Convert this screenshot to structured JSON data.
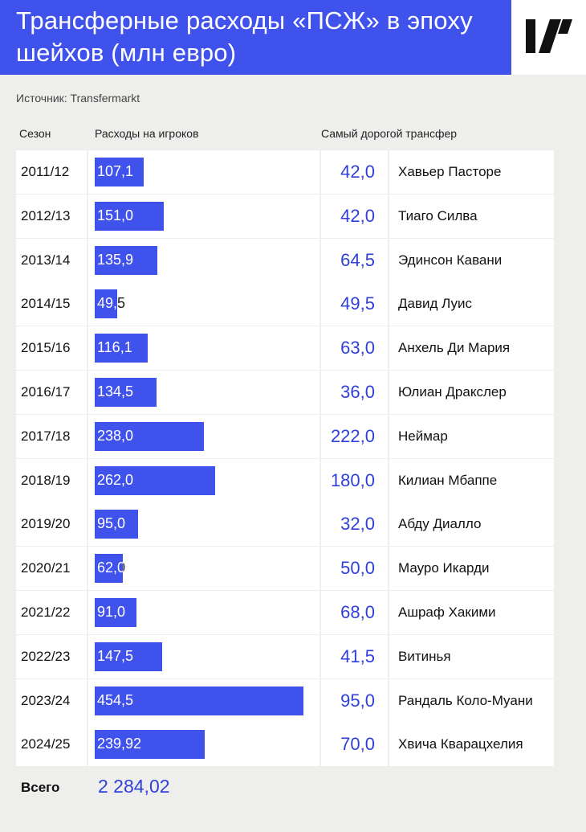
{
  "header": {
    "title": "Трансферные расходы «ПСЖ» в эпоху шейхов (млн евро)",
    "logo_icon": "tj-logo-icon"
  },
  "source": "Источник: Transfermarkt",
  "columns": {
    "season": "Сезон",
    "spending": "Расходы на игроков",
    "top_transfer": "Самый дорогой трансфер"
  },
  "colors": {
    "accent": "#4052ec",
    "accent_text": "#2f3fd9",
    "background": "#eeeeec"
  },
  "chart_data": {
    "type": "bar",
    "categories": [
      "2011/12",
      "2012/13",
      "2013/14",
      "2014/15",
      "2015/16",
      "2016/17",
      "2017/18",
      "2018/19",
      "2019/20",
      "2020/21",
      "2021/22",
      "2022/23",
      "2023/24",
      "2024/25"
    ],
    "values": [
      107.1,
      151.0,
      135.9,
      49.5,
      116.1,
      134.5,
      238.0,
      262.0,
      95.0,
      62.0,
      91.0,
      147.5,
      454.5,
      239.92
    ],
    "value_labels": [
      "107,1",
      "151,0",
      "135,9",
      "49,5",
      "116,1",
      "134,5",
      "238,0",
      "262,0",
      "95,0",
      "62,0",
      "91,0",
      "147,5",
      "454,5",
      "239,92"
    ],
    "top_transfer_values": [
      "42,0",
      "42,0",
      "64,5",
      "49,5",
      "63,0",
      "36,0",
      "222,0",
      "180,0",
      "32,0",
      "50,0",
      "68,0",
      "41,5",
      "95,0",
      "70,0"
    ],
    "top_transfer_players": [
      "Хавьер Пасторе",
      "Тиаго Силва",
      "Эдинсон Кавани",
      "Давид Луис",
      "Анхель Ди Мария",
      "Юлиан Дракслер",
      "Неймар",
      "Килиан Мбаппе",
      "Абду Диалло",
      "Мауро Икарди",
      "Ашраф Хакими",
      "Витинья",
      "Рандаль Коло-Муани",
      "Хвича Кварацхелия"
    ],
    "xlim": [
      0,
      454.5
    ]
  },
  "total": {
    "label": "Всего",
    "value": "2 284,02"
  }
}
